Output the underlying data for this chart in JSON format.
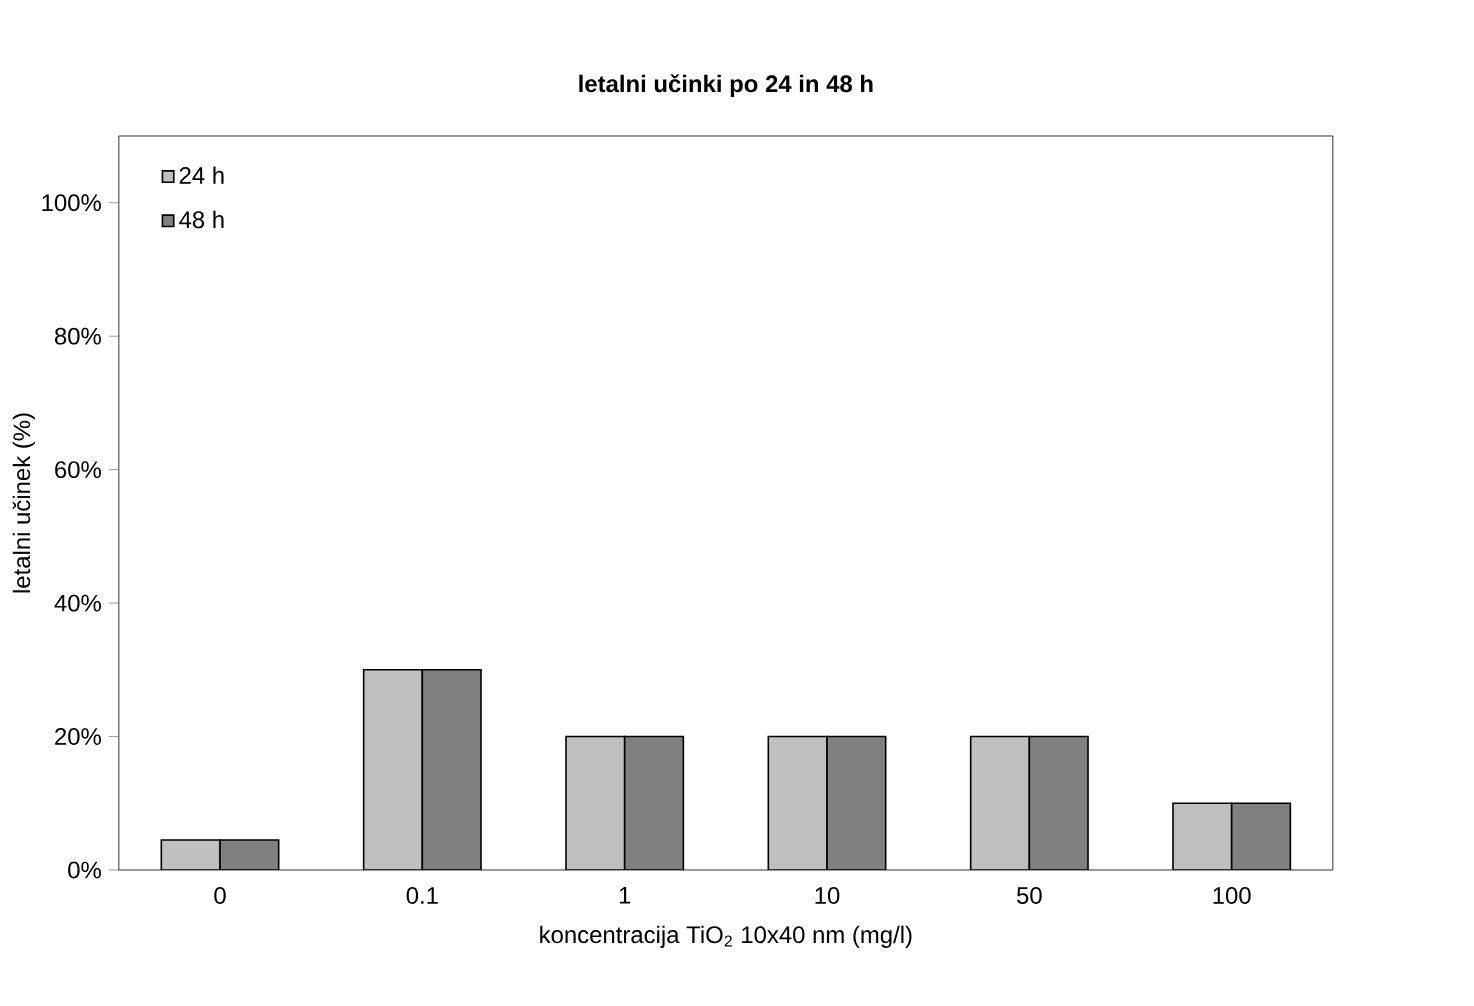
{
  "chart_data": {
    "type": "bar",
    "title": "letalni učinki po 24 in 48 h",
    "xlabel": "koncentracija TiO$_{2}$ 10x40 nm (mg/l)",
    "ylabel": "letalni učinek (%)",
    "categories": [
      "0",
      "0.1",
      "1",
      "10",
      "50",
      "100"
    ],
    "series": [
      {
        "name": "24 h",
        "color": "#c0c0c0",
        "values": [
          4.5,
          30,
          20,
          20,
          20,
          10
        ]
      },
      {
        "name": "48 h",
        "color": "#808080",
        "values": [
          4.5,
          30,
          20,
          20,
          20,
          10
        ]
      }
    ],
    "ylim": [
      0,
      110
    ],
    "yticks": [
      {
        "value": 0,
        "label": "0%"
      },
      {
        "value": 20,
        "label": "20%"
      },
      {
        "value": 40,
        "label": "40%"
      },
      {
        "value": 60,
        "label": "60%"
      },
      {
        "value": 80,
        "label": "80%"
      },
      {
        "value": 100,
        "label": "100%"
      }
    ],
    "legend": "top left",
    "grid": false
  }
}
